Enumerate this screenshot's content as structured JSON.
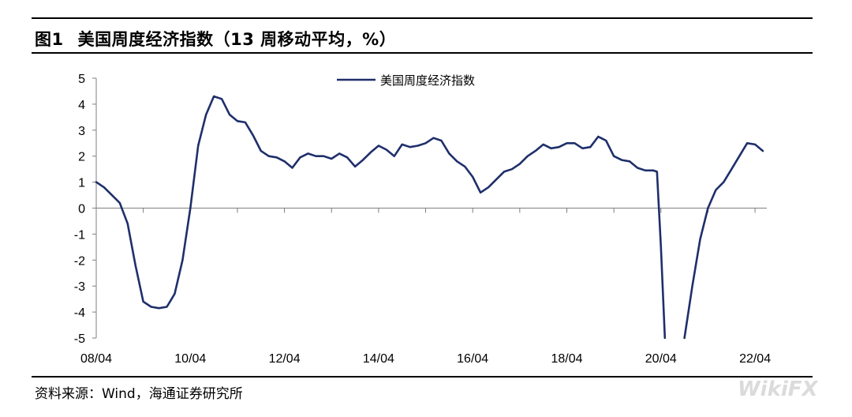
{
  "figure": {
    "label": "图1",
    "title": "美国周度经济指数（13 周移动平均，%）"
  },
  "source": "资料来源：Wind，海通证券研究所",
  "watermark": "WikiFX",
  "chart_data": {
    "type": "line",
    "title": "美国周度经济指数（13 周移动平均，%）",
    "xlabel": "",
    "ylabel": "",
    "ylim": [
      -5,
      5
    ],
    "yticks": [
      "5",
      "4",
      "3",
      "2",
      "1",
      "0",
      "-1",
      "-2",
      "-3",
      "-4",
      "-5"
    ],
    "xlim": [
      "2008-04",
      "2022-07"
    ],
    "xticks": [
      "08/04",
      "10/04",
      "12/04",
      "14/04",
      "16/04",
      "18/04",
      "20/04",
      "22/04"
    ],
    "legend_position": "top-center",
    "grid": false,
    "series": [
      {
        "name": "美国周度经济指数",
        "color": "#1f2f6b",
        "points": [
          [
            "2008-04",
            1.0
          ],
          [
            "2008-06",
            0.8
          ],
          [
            "2008-08",
            0.5
          ],
          [
            "2008-10",
            0.2
          ],
          [
            "2008-12",
            -0.6
          ],
          [
            "2009-02",
            -2.2
          ],
          [
            "2009-04",
            -3.6
          ],
          [
            "2009-06",
            -3.8
          ],
          [
            "2009-08",
            -3.85
          ],
          [
            "2009-10",
            -3.8
          ],
          [
            "2009-12",
            -3.3
          ],
          [
            "2010-02",
            -2.0
          ],
          [
            "2010-04",
            0.0
          ],
          [
            "2010-06",
            2.4
          ],
          [
            "2010-08",
            3.6
          ],
          [
            "2010-10",
            4.3
          ],
          [
            "2010-12",
            4.2
          ],
          [
            "2011-02",
            3.6
          ],
          [
            "2011-04",
            3.35
          ],
          [
            "2011-06",
            3.3
          ],
          [
            "2011-08",
            2.8
          ],
          [
            "2011-10",
            2.2
          ],
          [
            "2011-12",
            2.0
          ],
          [
            "2012-02",
            1.95
          ],
          [
            "2012-04",
            1.8
          ],
          [
            "2012-06",
            1.55
          ],
          [
            "2012-08",
            1.95
          ],
          [
            "2012-10",
            2.1
          ],
          [
            "2012-12",
            2.0
          ],
          [
            "2013-02",
            2.0
          ],
          [
            "2013-04",
            1.9
          ],
          [
            "2013-06",
            2.1
          ],
          [
            "2013-08",
            1.95
          ],
          [
            "2013-10",
            1.6
          ],
          [
            "2013-12",
            1.85
          ],
          [
            "2014-02",
            2.15
          ],
          [
            "2014-04",
            2.4
          ],
          [
            "2014-06",
            2.25
          ],
          [
            "2014-08",
            2.0
          ],
          [
            "2014-10",
            2.45
          ],
          [
            "2014-12",
            2.35
          ],
          [
            "2015-02",
            2.4
          ],
          [
            "2015-04",
            2.5
          ],
          [
            "2015-06",
            2.7
          ],
          [
            "2015-08",
            2.6
          ],
          [
            "2015-10",
            2.1
          ],
          [
            "2015-12",
            1.8
          ],
          [
            "2016-02",
            1.6
          ],
          [
            "2016-04",
            1.2
          ],
          [
            "2016-06",
            0.6
          ],
          [
            "2016-08",
            0.8
          ],
          [
            "2016-10",
            1.1
          ],
          [
            "2016-12",
            1.4
          ],
          [
            "2017-02",
            1.5
          ],
          [
            "2017-04",
            1.7
          ],
          [
            "2017-06",
            2.0
          ],
          [
            "2017-08",
            2.2
          ],
          [
            "2017-10",
            2.45
          ],
          [
            "2017-12",
            2.3
          ],
          [
            "2018-02",
            2.35
          ],
          [
            "2018-04",
            2.5
          ],
          [
            "2018-06",
            2.5
          ],
          [
            "2018-08",
            2.3
          ],
          [
            "2018-10",
            2.35
          ],
          [
            "2018-12",
            2.75
          ],
          [
            "2019-02",
            2.6
          ],
          [
            "2019-04",
            2.0
          ],
          [
            "2019-06",
            1.85
          ],
          [
            "2019-08",
            1.8
          ],
          [
            "2019-10",
            1.55
          ],
          [
            "2019-12",
            1.45
          ],
          [
            "2020-02",
            1.45
          ],
          [
            "2020-03",
            1.4
          ],
          [
            "2020-04",
            -1.5
          ],
          [
            "2020-05",
            -5.0
          ]
        ],
        "points_after_gap": [
          [
            "2020-10",
            -5.0
          ],
          [
            "2020-12",
            -3.0
          ],
          [
            "2021-02",
            -1.2
          ],
          [
            "2021-04",
            0.0
          ],
          [
            "2021-06",
            0.7
          ],
          [
            "2021-08",
            1.0
          ],
          [
            "2021-10",
            1.5
          ],
          [
            "2021-12",
            2.0
          ],
          [
            "2022-02",
            2.5
          ],
          [
            "2022-04",
            2.45
          ],
          [
            "2022-06",
            2.2
          ]
        ]
      }
    ]
  }
}
